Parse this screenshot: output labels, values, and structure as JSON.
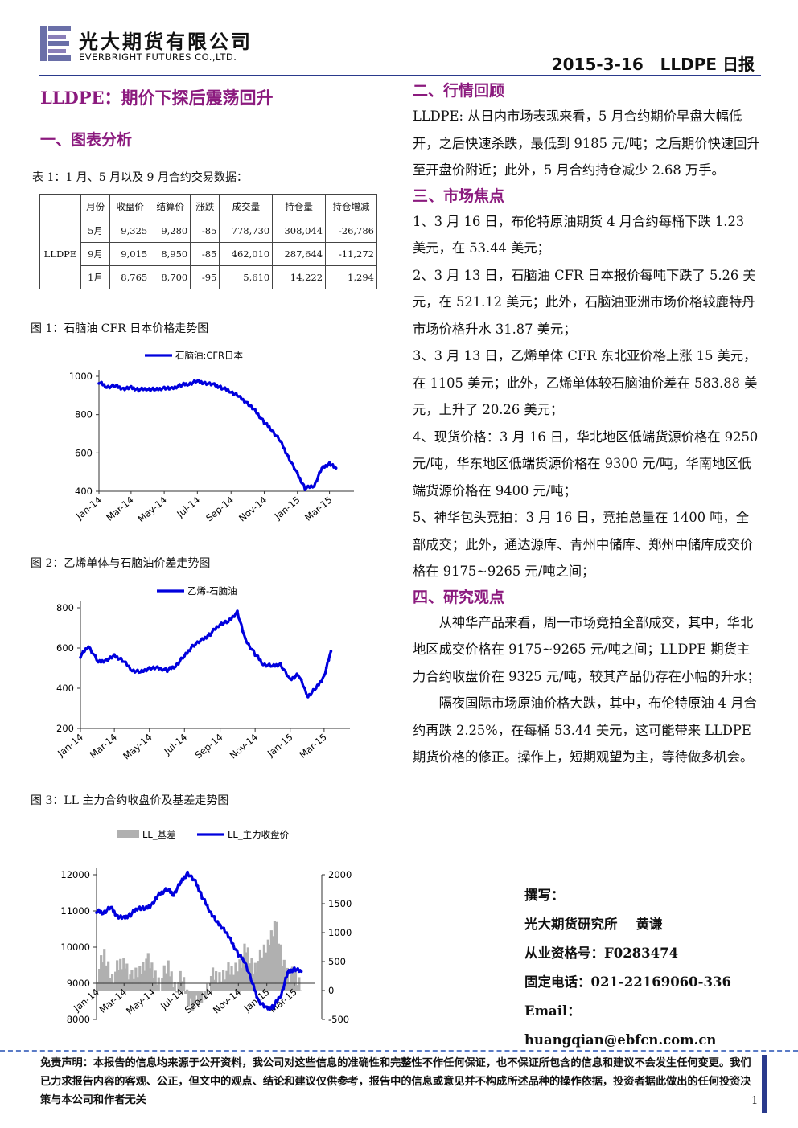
{
  "header": {
    "company_cn": "光大期货有限公司",
    "company_en": "EVERBRIGHT FUTURES CO.,LTD.",
    "date_title": "2015-3-16   LLDPE 日报"
  },
  "left": {
    "main_title": "LLDPE：期价下探后震荡回升",
    "section1": "一、图表分析",
    "table_caption": "表 1：1 月、5 月以及 9 月合约交易数据：",
    "table": {
      "headers": [
        "月份",
        "收盘价",
        "结算价",
        "涨跌",
        "成交量",
        "持仓量",
        "持仓增减"
      ],
      "group": "LLDPE",
      "rows": [
        [
          "5月",
          "9,325",
          "9,280",
          "-85",
          "778,730",
          "308,044",
          "-26,786"
        ],
        [
          "9月",
          "9,015",
          "8,950",
          "-85",
          "462,010",
          "287,644",
          "-11,272"
        ],
        [
          "1月",
          "8,765",
          "8,700",
          "-95",
          "5,610",
          "14,222",
          "1,294"
        ]
      ]
    },
    "fig1_caption": "图 1：石脑油 CFR 日本价格走势图",
    "fig2_caption": "图 2：乙烯单体与石脑油价差走势图",
    "fig3_caption": "图 3：LL 主力合约收盘价及基差走势图"
  },
  "right": {
    "section2": "二、行情回顾",
    "review": "LLDPE: 从日内市场表现来看，5 月合约期价早盘大幅低开，之后快速杀跌，最低到 9185 元/吨；之后期价快速回升至开盘价附近；此外，5 月合约持仓减少 2.68 万手。",
    "section3": "三、市场焦点",
    "focus": [
      "1、3 月 16 日，布伦特原油期货 4 月合约每桶下跌 1.23 美元，在 53.44 美元；",
      "2、3 月 13 日，石脑油 CFR 日本报价每吨下跌了 5.26 美元，在 521.12 美元；此外，石脑油亚洲市场价格较鹿特丹市场价格升水 31.87 美元；",
      "3、3 月 13 日，乙烯单体 CFR 东北亚价格上涨 15 美元，在 1105 美元；此外，乙烯单体较石脑油价差在 583.88 美元，上升了 20.26 美元；",
      "4、现货价格：3 月 16 日，华北地区低端货源价格在 9250 元/吨，华东地区低端货源价格在 9300 元/吨，华南地区低端货源价格在 9400 元/吨；",
      "5、神华包头竞拍：3 月 16 日，竞拍总量在 1400 吨，全部成交；此外，通达源库、青州中储库、郑州中储库成交价格在 9175~9265 元/吨之间；"
    ],
    "section4": "四、研究观点",
    "view": [
      "从神华产品来看，周一市场竞拍全部成交，其中，华北地区成交价格在 9175~9265 元/吨之间；LLDPE 期货主力合约收盘价在 9325 元/吨，较其产品仍存在小幅的升水；",
      "隔夜国际市场原油价格大跌，其中，布伦特原油 4 月合约再跌 2.25%，在每桶 53.44 美元，这可能带来 LLDPE 期货价格的修正。操作上，短期观望为主，等待做多机会。"
    ],
    "author": {
      "label": "撰写：",
      "org_name": "光大期货研究所    黄谦",
      "cert": "从业资格号：F0283474",
      "phone": "固定电话：021-22169060-336",
      "email": "Email：huangqian@ebfcn.com.cn"
    }
  },
  "footer": {
    "disclaimer": "免责声明：本报告的信息均来源于公开资料，我公司对这些信息的准确性和完整性不作任何保证，也不保证所包含的信息和建议不会发生任何变更。我们已力求报告内容的客观、公正，但文中的观点、结论和建议仅供参考，报告中的信息或意见并不构成所述品种的操作依据，投资者据此做出的任何投资决策与本公司和作者无关",
    "page_number": "1"
  },
  "colors": {
    "accent": "#8b1a7e",
    "line": "#0000dd",
    "bar": "#b0b0b0",
    "rule": "#2a3a8c"
  },
  "chart_data": [
    {
      "type": "line",
      "title": "",
      "series": [
        {
          "name": "石脑油:CFR日本",
          "x": [
            "2014-01-01",
            "2014-01-15",
            "2014-02-01",
            "2014-02-15",
            "2014-03-01",
            "2014-03-15",
            "2014-04-01",
            "2014-04-15",
            "2014-05-01",
            "2014-05-15",
            "2014-06-01",
            "2014-06-15",
            "2014-07-01",
            "2014-07-15",
            "2014-08-01",
            "2014-08-15",
            "2014-09-01",
            "2014-09-15",
            "2014-10-01",
            "2014-10-15",
            "2014-11-01",
            "2014-11-15",
            "2014-12-01",
            "2014-12-15",
            "2015-01-01",
            "2015-01-15",
            "2015-02-01",
            "2015-02-15",
            "2015-03-01",
            "2015-03-13"
          ],
          "values": [
            970,
            945,
            950,
            935,
            940,
            930,
            935,
            930,
            940,
            935,
            955,
            960,
            975,
            965,
            955,
            940,
            920,
            895,
            860,
            820,
            760,
            720,
            660,
            580,
            490,
            415,
            430,
            520,
            545,
            521
          ]
        }
      ],
      "x_ticks": [
        "Jan-14",
        "Mar-14",
        "May-14",
        "Jul-14",
        "Sep-14",
        "Nov-14",
        "Jan-15",
        "Mar-15"
      ],
      "ylim": [
        400,
        1000
      ],
      "yticks": [
        400,
        600,
        800,
        1000
      ],
      "legend": "top"
    },
    {
      "type": "line",
      "title": "",
      "series": [
        {
          "name": "乙烯-石脑油",
          "x": [
            "2014-01-01",
            "2014-01-15",
            "2014-02-01",
            "2014-02-15",
            "2014-03-01",
            "2014-03-15",
            "2014-04-01",
            "2014-04-15",
            "2014-05-01",
            "2014-05-15",
            "2014-06-01",
            "2014-06-15",
            "2014-07-01",
            "2014-07-15",
            "2014-08-01",
            "2014-08-15",
            "2014-09-01",
            "2014-09-15",
            "2014-10-01",
            "2014-10-15",
            "2014-11-01",
            "2014-11-15",
            "2014-12-01",
            "2014-12-15",
            "2015-01-01",
            "2015-01-15",
            "2015-02-01",
            "2015-02-15",
            "2015-03-01",
            "2015-03-13"
          ],
          "values": [
            560,
            610,
            530,
            540,
            560,
            540,
            490,
            480,
            500,
            500,
            490,
            510,
            560,
            610,
            640,
            670,
            720,
            730,
            780,
            640,
            570,
            520,
            510,
            520,
            440,
            470,
            360,
            400,
            460,
            584
          ]
        }
      ],
      "x_ticks": [
        "Jan-14",
        "Mar-14",
        "May-14",
        "Jul-14",
        "Sep-14",
        "Nov-14",
        "Jan-15",
        "Mar-15"
      ],
      "ylim": [
        200,
        800
      ],
      "yticks": [
        200,
        400,
        600,
        800
      ],
      "legend": "top"
    },
    {
      "type": "line",
      "title": "",
      "series": [
        {
          "name": "LL_主力收盘价",
          "axis": "left",
          "x": [
            "2014-01-01",
            "2014-01-15",
            "2014-02-01",
            "2014-02-15",
            "2014-03-01",
            "2014-03-15",
            "2014-04-01",
            "2014-04-15",
            "2014-05-01",
            "2014-05-15",
            "2014-06-01",
            "2014-06-15",
            "2014-07-01",
            "2014-07-15",
            "2014-08-01",
            "2014-08-15",
            "2014-09-01",
            "2014-09-15",
            "2014-10-01",
            "2014-10-15",
            "2014-11-01",
            "2014-11-15",
            "2014-12-01",
            "2014-12-15",
            "2015-01-01",
            "2015-01-15",
            "2015-02-01",
            "2015-02-15",
            "2015-03-01",
            "2015-03-16"
          ],
          "values": [
            11000,
            10950,
            11100,
            10850,
            10800,
            10900,
            11100,
            11050,
            11200,
            11450,
            11600,
            11450,
            11800,
            12050,
            11800,
            11400,
            11000,
            10700,
            10500,
            10200,
            9800,
            9600,
            9000,
            8500,
            8300,
            8350,
            8700,
            9300,
            9400,
            9325
          ]
        },
        {
          "name": "LL_基差",
          "axis": "right",
          "type": "area",
          "x": [
            "2014-01-01",
            "2014-01-15",
            "2014-02-01",
            "2014-02-15",
            "2014-03-01",
            "2014-03-15",
            "2014-04-01",
            "2014-04-15",
            "2014-05-01",
            "2014-05-15",
            "2014-06-01",
            "2014-06-15",
            "2014-07-01",
            "2014-07-15",
            "2014-08-01",
            "2014-08-15",
            "2014-09-01",
            "2014-09-15",
            "2014-10-01",
            "2014-10-15",
            "2014-11-01",
            "2014-11-15",
            "2014-12-01",
            "2014-12-15",
            "2015-01-01",
            "2015-01-15",
            "2015-02-01",
            "2015-02-15",
            "2015-03-01",
            "2015-03-16"
          ],
          "values": [
            300,
            600,
            250,
            400,
            500,
            200,
            350,
            550,
            300,
            150,
            400,
            100,
            200,
            -150,
            -250,
            -100,
            250,
            200,
            350,
            300,
            500,
            700,
            400,
            550,
            800,
            1200,
            500,
            300,
            200,
            100
          ]
        }
      ],
      "x_ticks": [
        "Jan-14",
        "Mar-14",
        "May-14",
        "Jul-14",
        "Sep-14",
        "Nov-14",
        "Jan-15",
        "Mar-15"
      ],
      "ylim": [
        8000,
        12000
      ],
      "yticks": [
        8000,
        9000,
        10000,
        11000,
        12000
      ],
      "y2lim": [
        -500,
        2000
      ],
      "y2ticks": [
        -500,
        0,
        500,
        1000,
        1500,
        2000
      ],
      "legend": "top"
    }
  ]
}
